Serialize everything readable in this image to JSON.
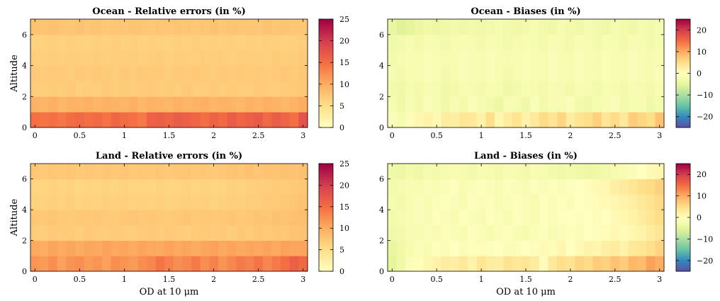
{
  "chart_data": [
    {
      "type": "heatmap",
      "id": "ocean-rel",
      "title": "Ocean - Relative errors (in %)",
      "xlabel": "",
      "ylabel": "Altitude",
      "xlim": [
        -0.05,
        3.05
      ],
      "ylim": [
        0,
        7
      ],
      "x_ticks": [
        0,
        0.5,
        1,
        1.5,
        2,
        2.5,
        3
      ],
      "y_ticks": [
        0,
        2,
        4,
        6
      ],
      "x_edges": [
        -0.05,
        0.05,
        0.15,
        0.25,
        0.35,
        0.45,
        0.55,
        0.65,
        0.75,
        0.85,
        0.95,
        1.05,
        1.15,
        1.25,
        1.35,
        1.45,
        1.55,
        1.65,
        1.75,
        1.85,
        1.95,
        2.05,
        2.15,
        2.25,
        2.35,
        2.45,
        2.55,
        2.65,
        2.75,
        2.85,
        2.95,
        3.05
      ],
      "y_edges": [
        0,
        1,
        2,
        3,
        4,
        5,
        6,
        7
      ],
      "colormap": "spectral",
      "clim": [
        0,
        25
      ],
      "colorbar_ticks": [
        0,
        5,
        10,
        15,
        20,
        25
      ],
      "grid": false,
      "values": [
        [
          15.0,
          14.5,
          14.8,
          14.2,
          15.1,
          15.5,
          14.9,
          15.3,
          14.6,
          15.8,
          15.2,
          14.7,
          14.1,
          16.2,
          16.5,
          15.9,
          16.8,
          16.4,
          15.7,
          14.9,
          16.1,
          15.4,
          16.7,
          15.8,
          16.3,
          16.9,
          15.5,
          16.6,
          15.9,
          14.8,
          17.8
        ],
        [
          9.5,
          9.2,
          9.8,
          9.1,
          9.6,
          9.4,
          9.9,
          9.3,
          9.7,
          9.5,
          9.2,
          9.8,
          9.0,
          9.6,
          9.4,
          9.1,
          9.7,
          9.3,
          9.5,
          9.8,
          9.2,
          9.6,
          9.4,
          9.0,
          9.7,
          9.3,
          9.9,
          9.5,
          9.1,
          9.6,
          10.1
        ],
        [
          7.0,
          6.8,
          7.1,
          6.9,
          7.2,
          6.7,
          7.0,
          6.9,
          7.3,
          6.8,
          7.1,
          6.9,
          7.0,
          7.2,
          6.8,
          7.1,
          6.9,
          7.3,
          7.0,
          6.8,
          7.2,
          6.9,
          7.1,
          7.0,
          6.8,
          7.2,
          7.0,
          6.9,
          7.1,
          7.3,
          7.5
        ],
        [
          7.2,
          7.0,
          7.3,
          7.1,
          6.9,
          7.2,
          7.0,
          7.4,
          7.1,
          6.9,
          7.3,
          7.0,
          7.2,
          7.1,
          7.3,
          6.9,
          7.2,
          7.0,
          7.4,
          7.1,
          6.9,
          7.3,
          7.0,
          7.2,
          7.1,
          7.3,
          7.0,
          7.2,
          7.4,
          7.1,
          7.6
        ],
        [
          6.8,
          6.6,
          6.9,
          6.7,
          7.0,
          6.8,
          6.6,
          6.9,
          6.7,
          7.0,
          6.8,
          6.9,
          6.7,
          6.8,
          7.0,
          6.6,
          6.9,
          6.8,
          6.7,
          7.0,
          6.8,
          6.9,
          6.7,
          7.0,
          6.8,
          6.9,
          6.7,
          7.1,
          6.8,
          6.9,
          7.2
        ],
        [
          6.5,
          6.3,
          6.6,
          6.4,
          6.7,
          6.5,
          6.3,
          6.6,
          6.4,
          6.8,
          6.5,
          6.6,
          6.4,
          6.7,
          6.5,
          6.3,
          6.6,
          6.5,
          6.8,
          6.4,
          6.6,
          6.5,
          6.7,
          6.4,
          6.6,
          6.5,
          6.8,
          6.6,
          6.4,
          6.7,
          6.9
        ],
        [
          8.0,
          7.8,
          8.1,
          7.7,
          7.5,
          7.9,
          7.6,
          7.8,
          7.4,
          7.7,
          7.5,
          7.8,
          7.6,
          7.4,
          7.7,
          7.5,
          7.8,
          7.6,
          7.4,
          7.7,
          7.9,
          7.5,
          7.8,
          7.6,
          7.7,
          7.5,
          7.9,
          7.6,
          7.8,
          7.5,
          7.7
        ]
      ]
    },
    {
      "type": "heatmap",
      "id": "ocean-bias",
      "title": "Ocean - Biases (in %)",
      "xlabel": "",
      "ylabel": "",
      "xlim": [
        -0.05,
        3.05
      ],
      "ylim": [
        0,
        7
      ],
      "x_ticks": [
        0,
        0.5,
        1,
        1.5,
        2,
        2.5,
        3
      ],
      "y_ticks": [
        0,
        2,
        4,
        6
      ],
      "x_edges": [
        -0.05,
        0.05,
        0.15,
        0.25,
        0.35,
        0.45,
        0.55,
        0.65,
        0.75,
        0.85,
        0.95,
        1.05,
        1.15,
        1.25,
        1.35,
        1.45,
        1.55,
        1.65,
        1.75,
        1.85,
        1.95,
        2.05,
        2.15,
        2.25,
        2.35,
        2.45,
        2.55,
        2.65,
        2.75,
        2.85,
        2.95,
        3.05
      ],
      "y_edges": [
        0,
        1,
        2,
        3,
        4,
        5,
        6,
        7
      ],
      "colormap": "spectral",
      "clim": [
        -25,
        25
      ],
      "colorbar_ticks": [
        -20,
        -10,
        0,
        10,
        20
      ],
      "grid": false,
      "values": [
        [
          -1.0,
          -2.0,
          0.5,
          1.5,
          2.0,
          1.0,
          3.0,
          2.5,
          4.0,
          3.5,
          2.0,
          5.0,
          1.5,
          3.0,
          4.5,
          2.0,
          3.5,
          5.5,
          4.0,
          6.0,
          3.0,
          4.5,
          5.0,
          6.5,
          4.0,
          5.5,
          3.5,
          7.0,
          6.0,
          5.0,
          8.0
        ],
        [
          -2.0,
          -3.0,
          -1.5,
          -2.5,
          -1.0,
          -2.0,
          -3.0,
          -1.5,
          -2.5,
          -1.0,
          -2.0,
          -2.5,
          -3.5,
          -1.5,
          -2.0,
          -3.0,
          -1.0,
          -2.5,
          -1.5,
          -2.0,
          -1.0,
          -2.5,
          -3.0,
          -2.0,
          -1.5,
          -1.0,
          -2.5,
          -2.0,
          -1.5,
          -3.0,
          -2.0
        ],
        [
          -2.5,
          -3.0,
          -2.0,
          -2.5,
          -1.5,
          -2.0,
          -3.0,
          -2.5,
          -1.5,
          -2.0,
          -2.5,
          -1.5,
          -2.0,
          -3.0,
          -2.5,
          -1.5,
          -2.0,
          -2.5,
          -1.5,
          -2.0,
          -2.5,
          -1.5,
          -2.0,
          -2.5,
          -1.5,
          -2.0,
          -2.5,
          -1.5,
          -2.0,
          -2.5,
          -1.5
        ],
        [
          -2.0,
          -2.5,
          -1.5,
          -2.0,
          -1.0,
          -1.5,
          -2.5,
          -2.0,
          -1.0,
          -1.5,
          -2.0,
          -1.0,
          -1.5,
          -2.5,
          -2.0,
          -1.0,
          -1.5,
          -2.0,
          -1.0,
          -1.5,
          -2.0,
          -1.0,
          -1.5,
          -2.0,
          -1.0,
          -1.5,
          -2.0,
          -1.0,
          -1.5,
          -2.0,
          -1.0
        ],
        [
          -2.5,
          -2.0,
          -1.5,
          -2.0,
          -1.0,
          -1.5,
          -2.0,
          -1.5,
          -1.0,
          -1.5,
          -2.0,
          -1.0,
          -1.5,
          -2.0,
          -1.5,
          -1.0,
          -1.5,
          -2.0,
          -1.0,
          -1.5,
          -2.0,
          -1.0,
          -1.5,
          -2.0,
          -1.0,
          -1.5,
          -2.0,
          -1.0,
          -1.5,
          -2.0,
          -1.5
        ],
        [
          -3.0,
          -2.5,
          -2.0,
          -2.5,
          -1.5,
          -2.0,
          -2.5,
          -2.0,
          -1.5,
          -2.0,
          -2.5,
          -1.5,
          -2.0,
          -2.5,
          -2.0,
          -1.5,
          -2.0,
          -2.5,
          -1.5,
          -2.0,
          -2.5,
          -1.5,
          -2.0,
          -2.5,
          -1.5,
          -2.0,
          -2.5,
          -1.5,
          -2.0,
          -2.5,
          -2.0
        ],
        [
          -4.0,
          -5.5,
          -5.0,
          -3.5,
          -3.0,
          -3.5,
          -3.0,
          -2.5,
          -3.0,
          -2.5,
          -3.0,
          -2.5,
          -2.0,
          -2.5,
          -3.0,
          -2.5,
          -2.0,
          -2.5,
          -3.0,
          -2.0,
          -2.5,
          -3.0,
          -2.0,
          -2.5,
          -3.0,
          -2.0,
          -2.5,
          -3.0,
          -2.0,
          -2.5,
          -2.0
        ]
      ]
    },
    {
      "type": "heatmap",
      "id": "land-rel",
      "title": "Land - Relative errors (in %)",
      "xlabel": "OD at 10 μm",
      "ylabel": "Altitude",
      "xlim": [
        -0.05,
        3.05
      ],
      "ylim": [
        0,
        7
      ],
      "x_ticks": [
        0,
        0.5,
        1,
        1.5,
        2,
        2.5,
        3
      ],
      "y_ticks": [
        0,
        2,
        4,
        6
      ],
      "x_edges": [
        -0.05,
        0.05,
        0.15,
        0.25,
        0.35,
        0.45,
        0.55,
        0.65,
        0.75,
        0.85,
        0.95,
        1.05,
        1.15,
        1.25,
        1.35,
        1.45,
        1.55,
        1.65,
        1.75,
        1.85,
        1.95,
        2.05,
        2.15,
        2.25,
        2.35,
        2.45,
        2.55,
        2.65,
        2.75,
        2.85,
        2.95,
        3.05
      ],
      "y_edges": [
        0,
        1,
        2,
        3,
        4,
        5,
        6,
        7
      ],
      "colormap": "spectral",
      "clim": [
        0,
        25
      ],
      "colorbar_ticks": [
        0,
        5,
        10,
        15,
        20,
        25
      ],
      "grid": false,
      "values": [
        [
          12.0,
          11.5,
          12.5,
          11.0,
          12.0,
          12.5,
          11.5,
          12.0,
          11.0,
          12.5,
          12.0,
          11.5,
          12.5,
          13.0,
          14.5,
          13.5,
          12.5,
          13.0,
          14.0,
          12.5,
          13.5,
          12.0,
          13.0,
          14.0,
          13.5,
          14.5,
          13.0,
          14.0,
          15.0,
          16.5,
          15.5
        ],
        [
          10.5,
          10.0,
          10.8,
          10.2,
          10.6,
          10.1,
          10.7,
          10.3,
          10.9,
          10.4,
          10.6,
          10.2,
          10.8,
          10.5,
          10.3,
          10.9,
          10.4,
          10.7,
          10.2,
          10.6,
          11.0,
          10.4,
          10.8,
          10.3,
          10.7,
          10.5,
          10.9,
          10.4,
          11.0,
          10.6,
          10.8
        ],
        [
          7.0,
          6.8,
          7.2,
          6.9,
          7.1,
          6.8,
          7.3,
          7.0,
          6.9,
          7.2,
          7.0,
          6.8,
          7.1,
          7.3,
          6.9,
          7.2,
          7.0,
          6.8,
          7.1,
          7.3,
          7.0,
          7.2,
          6.9,
          7.4,
          7.1,
          7.5,
          7.2,
          7.6,
          7.4,
          7.8,
          8.0
        ],
        [
          7.5,
          7.2,
          7.6,
          7.3,
          7.1,
          7.4,
          7.2,
          7.5,
          7.3,
          7.1,
          7.4,
          7.6,
          7.2,
          7.5,
          7.3,
          7.1,
          7.4,
          7.6,
          7.3,
          7.5,
          7.2,
          7.4,
          7.6,
          7.3,
          7.5,
          7.8,
          7.6,
          8.0,
          7.8,
          8.2,
          8.4
        ],
        [
          6.5,
          6.3,
          6.7,
          6.4,
          6.6,
          6.2,
          6.5,
          6.3,
          6.6,
          6.4,
          6.7,
          6.3,
          6.5,
          6.4,
          6.6,
          6.3,
          6.5,
          6.7,
          6.4,
          6.6,
          6.3,
          6.5,
          6.8,
          6.6,
          6.9,
          7.0,
          7.2,
          7.1,
          7.4,
          7.6,
          7.9
        ],
        [
          6.2,
          6.0,
          6.4,
          6.1,
          6.3,
          5.9,
          6.2,
          6.0,
          6.3,
          6.1,
          6.4,
          6.0,
          6.2,
          6.1,
          6.3,
          6.0,
          6.2,
          6.4,
          6.1,
          6.3,
          6.0,
          6.2,
          6.5,
          6.3,
          6.6,
          6.8,
          6.9,
          7.1,
          7.0,
          7.3,
          7.5
        ],
        [
          7.5,
          7.3,
          7.6,
          7.4,
          7.7,
          7.2,
          7.5,
          7.3,
          7.6,
          7.4,
          7.7,
          7.3,
          7.5,
          7.4,
          7.6,
          7.3,
          7.5,
          7.7,
          7.4,
          7.6,
          7.3,
          7.5,
          7.8,
          7.6,
          7.9,
          7.7,
          8.0,
          7.8,
          8.1,
          7.9,
          8.2
        ]
      ]
    },
    {
      "type": "heatmap",
      "id": "land-bias",
      "title": "Land - Biases (in %)",
      "xlabel": "OD at 10 μm",
      "ylabel": "",
      "xlim": [
        -0.05,
        3.05
      ],
      "ylim": [
        0,
        7
      ],
      "x_ticks": [
        0,
        0.5,
        1,
        1.5,
        2,
        2.5,
        3
      ],
      "y_ticks": [
        0,
        2,
        4,
        6
      ],
      "x_edges": [
        -0.05,
        0.05,
        0.15,
        0.25,
        0.35,
        0.45,
        0.55,
        0.65,
        0.75,
        0.85,
        0.95,
        1.05,
        1.15,
        1.25,
        1.35,
        1.45,
        1.55,
        1.65,
        1.75,
        1.85,
        1.95,
        2.05,
        2.15,
        2.25,
        2.35,
        2.45,
        2.55,
        2.65,
        2.75,
        2.85,
        2.95,
        3.05
      ],
      "y_edges": [
        0,
        1,
        2,
        3,
        4,
        5,
        6,
        7
      ],
      "colormap": "spectral",
      "clim": [
        -25,
        25
      ],
      "colorbar_ticks": [
        -20,
        -10,
        0,
        10,
        20
      ],
      "grid": false,
      "values": [
        [
          -5.0,
          -3.0,
          -1.0,
          0.5,
          1.5,
          2.0,
          3.0,
          2.5,
          3.5,
          2.0,
          4.0,
          3.0,
          2.5,
          4.5,
          3.5,
          4.0,
          3.0,
          0.5,
          3.5,
          5.0,
          4.5,
          6.0,
          5.5,
          7.0,
          6.5,
          8.0,
          7.0,
          9.0,
          8.5,
          11.0,
          10.0
        ],
        [
          -4.0,
          -3.0,
          -2.0,
          -1.0,
          -1.5,
          -0.5,
          -1.0,
          0.0,
          -1.0,
          -0.5,
          0.5,
          -0.5,
          0.0,
          -1.0,
          0.5,
          0.0,
          -0.5,
          1.0,
          0.5,
          1.5,
          0.0,
          1.0,
          2.0,
          1.5,
          2.5,
          3.0,
          2.0,
          3.5,
          4.0,
          5.0,
          6.0
        ],
        [
          -3.0,
          -2.5,
          -1.5,
          -2.0,
          -1.0,
          -1.5,
          -0.5,
          -1.0,
          -1.5,
          -0.5,
          -1.0,
          -2.0,
          -1.0,
          -0.5,
          -1.5,
          -2.0,
          -1.0,
          -0.5,
          -1.5,
          -1.0,
          -0.5,
          -1.0,
          0.0,
          -0.5,
          0.5,
          1.0,
          0.5,
          1.5,
          2.0,
          3.0,
          4.0
        ],
        [
          -2.5,
          -2.0,
          -1.5,
          -1.0,
          -1.5,
          -0.5,
          -1.0,
          -1.5,
          -0.5,
          -1.0,
          -1.5,
          -0.5,
          -1.0,
          -1.5,
          -0.5,
          -1.0,
          -1.5,
          -0.5,
          -1.0,
          -0.5,
          0.0,
          -0.5,
          0.0,
          0.5,
          0.0,
          1.0,
          1.5,
          2.0,
          3.0,
          4.0,
          5.0
        ],
        [
          -2.0,
          -2.5,
          -1.5,
          -1.0,
          -1.5,
          -1.0,
          -0.5,
          -1.0,
          -1.5,
          -0.5,
          -1.0,
          -0.5,
          -1.5,
          -1.0,
          -0.5,
          -1.0,
          -1.5,
          -0.5,
          -1.0,
          -0.5,
          -1.0,
          0.0,
          -0.5,
          0.5,
          1.0,
          1.5,
          2.0,
          2.5,
          3.5,
          4.5,
          5.5
        ],
        [
          -2.5,
          -2.0,
          -1.5,
          -2.0,
          -1.0,
          -1.5,
          -1.0,
          -0.5,
          -1.5,
          -1.0,
          -0.5,
          -1.0,
          -1.5,
          -0.5,
          -1.0,
          -1.5,
          -0.5,
          -1.0,
          -0.5,
          -1.0,
          -0.5,
          0.0,
          0.5,
          1.0,
          1.5,
          2.5,
          3.0,
          4.0,
          5.0,
          5.5,
          6.5
        ],
        [
          -3.0,
          -3.5,
          -2.5,
          -3.0,
          -2.0,
          -2.5,
          -2.0,
          -1.5,
          -2.0,
          -2.5,
          -1.5,
          -2.0,
          -2.5,
          -1.5,
          -2.0,
          -2.5,
          -1.5,
          -2.0,
          -2.5,
          -3.0,
          -2.5,
          -3.0,
          -3.5,
          -3.0,
          -2.5,
          -2.0,
          -1.5,
          -1.0,
          0.0,
          1.0,
          1.5
        ]
      ]
    }
  ]
}
